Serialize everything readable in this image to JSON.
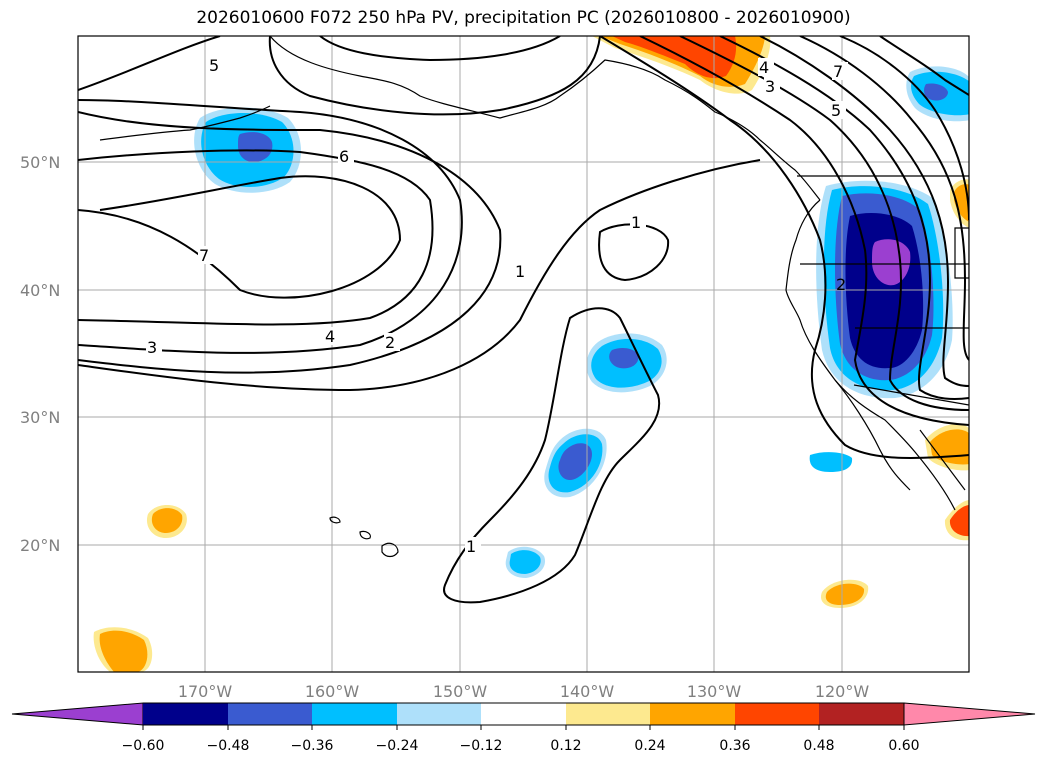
{
  "title": "2026010600 F072 250 hPa PV, precipitation PC (2026010800 - 2026010900)",
  "lat_labels": [
    "50°N",
    "40°N",
    "30°N",
    "20°N"
  ],
  "lon_labels": [
    "170°W",
    "160°W",
    "150°W",
    "140°W",
    "130°W",
    "120°W"
  ],
  "contour_labels": [
    "5",
    "6",
    "7",
    "3",
    "4",
    "2",
    "1",
    "1",
    "1",
    "7",
    "5",
    "4",
    "3",
    "2"
  ],
  "colorbar": {
    "ticks": [
      "−0.60",
      "−0.48",
      "−0.36",
      "−0.24",
      "−0.12",
      "0.12",
      "0.24",
      "0.36",
      "0.48",
      "0.60"
    ],
    "colors": [
      "#9b3fd0",
      "#00008b",
      "#3a5bd0",
      "#00bfff",
      "#aee0fa",
      "#ffffff",
      "#fde98f",
      "#ffa500",
      "#ff4500",
      "#b22222",
      "#ff88aa"
    ]
  },
  "colors": {
    "purple": "#9b3fd0",
    "navy": "#00008b",
    "blue": "#3a5bd0",
    "cyan": "#00bfff",
    "lightblue": "#aee0fa",
    "yellow": "#fde98f",
    "orange": "#ffa500",
    "redorange": "#ff4500"
  }
}
